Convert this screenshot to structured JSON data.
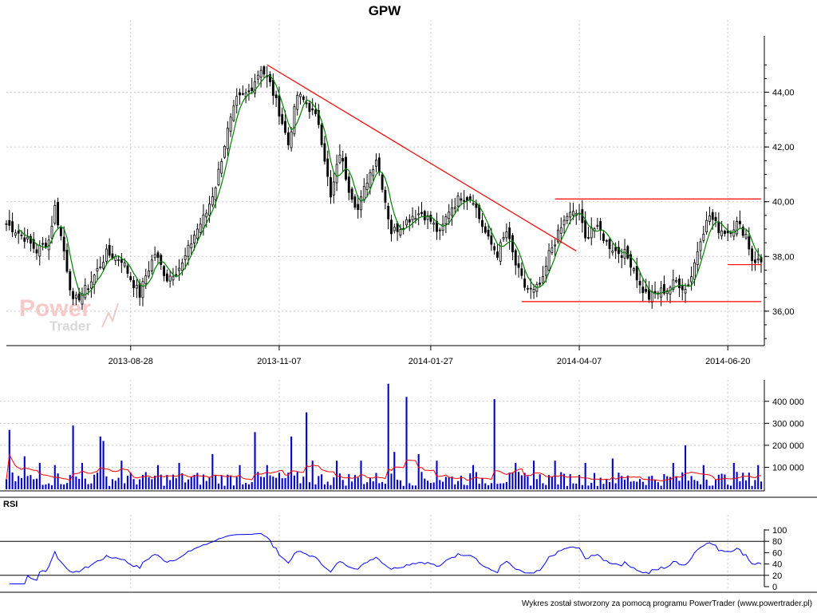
{
  "title": "GPW",
  "chart_data": [
    {
      "type": "candlestick",
      "ylim": [
        34.8,
        46.0
      ],
      "yticks": [
        "36,00",
        "38,00",
        "40,00",
        "42,00",
        "44,00"
      ],
      "ytick_values": [
        36,
        38,
        40,
        42,
        44
      ],
      "xticks": [
        "2013-08-28",
        "2013-11-07",
        "2014-01-27",
        "2014-04-07",
        "2014-06-20"
      ],
      "xtick_index": [
        41,
        90,
        140,
        189,
        238
      ],
      "n_days": 250,
      "grid": true,
      "close_anchors": [
        [
          0,
          39.2
        ],
        [
          6,
          38.7
        ],
        [
          10,
          38.2
        ],
        [
          14,
          38.6
        ],
        [
          16,
          39.8
        ],
        [
          19,
          38.2
        ],
        [
          22,
          36.3
        ],
        [
          27,
          36.9
        ],
        [
          31,
          37.7
        ],
        [
          33,
          38.1
        ],
        [
          38,
          37.9
        ],
        [
          41,
          37.2
        ],
        [
          44,
          36.6
        ],
        [
          46,
          37.3
        ],
        [
          49,
          38.1
        ],
        [
          53,
          37.2
        ],
        [
          58,
          37.7
        ],
        [
          62,
          38.8
        ],
        [
          66,
          39.6
        ],
        [
          69,
          40.6
        ],
        [
          73,
          42.6
        ],
        [
          76,
          43.7
        ],
        [
          80,
          44.0
        ],
        [
          84,
          44.9
        ],
        [
          87,
          44.3
        ],
        [
          90,
          43.3
        ],
        [
          93,
          42.1
        ],
        [
          96,
          43.9
        ],
        [
          99,
          43.6
        ],
        [
          103,
          42.9
        ],
        [
          105,
          41.6
        ],
        [
          107,
          40.1
        ],
        [
          110,
          41.8
        ],
        [
          113,
          40.5
        ],
        [
          116,
          39.7
        ],
        [
          119,
          40.8
        ],
        [
          122,
          41.6
        ],
        [
          124,
          40.6
        ],
        [
          127,
          38.9
        ],
        [
          130,
          39.1
        ],
        [
          134,
          39.5
        ],
        [
          137,
          39.6
        ],
        [
          140,
          39.3
        ],
        [
          143,
          38.8
        ],
        [
          146,
          39.7
        ],
        [
          150,
          40.2
        ],
        [
          154,
          40.1
        ],
        [
          156,
          39.4
        ],
        [
          159,
          38.6
        ],
        [
          162,
          38.1
        ],
        [
          165,
          38.9
        ],
        [
          168,
          37.7
        ],
        [
          171,
          36.9
        ],
        [
          174,
          36.7
        ],
        [
          177,
          37.1
        ],
        [
          179,
          38.1
        ],
        [
          182,
          38.8
        ],
        [
          185,
          39.5
        ],
        [
          189,
          39.6
        ],
        [
          191,
          38.6
        ],
        [
          193,
          39.1
        ],
        [
          196,
          38.9
        ],
        [
          198,
          38.5
        ],
        [
          201,
          38.2
        ],
        [
          204,
          38.1
        ],
        [
          207,
          37.6
        ],
        [
          209,
          36.9
        ],
        [
          212,
          36.5
        ],
        [
          215,
          36.7
        ],
        [
          218,
          36.8
        ],
        [
          221,
          37.1
        ],
        [
          224,
          36.8
        ],
        [
          226,
          37.3
        ],
        [
          229,
          38.7
        ],
        [
          232,
          39.5
        ],
        [
          235,
          39.0
        ],
        [
          238,
          38.9
        ],
        [
          241,
          39.2
        ],
        [
          244,
          38.8
        ],
        [
          246,
          37.9
        ],
        [
          249,
          37.8
        ]
      ],
      "lines": [
        {
          "color": "#ff0000",
          "points": [
            [
              86,
              45.0
            ],
            [
              188,
              38.2
            ]
          ]
        },
        {
          "color": "#ff0000",
          "points": [
            [
              181,
              40.1
            ],
            [
              249,
              40.1
            ]
          ]
        },
        {
          "color": "#ff0000",
          "points": [
            [
              170,
              36.35
            ],
            [
              249,
              36.35
            ]
          ]
        },
        {
          "color": "#ff0000",
          "points": [
            [
              238,
              37.7
            ],
            [
              249,
              37.7
            ]
          ]
        }
      ],
      "ma_color": "#008000",
      "candle_color": "#000000"
    },
    {
      "type": "bar",
      "ylim": [
        0,
        490000
      ],
      "yticks": [
        "100 000",
        "200 000",
        "300 000",
        "400 000"
      ],
      "ytick_values": [
        100000,
        200000,
        300000,
        400000
      ],
      "bar_color": "#0000cc",
      "avg_color": "#ff0000",
      "spikes": [
        [
          1,
          270000
        ],
        [
          6,
          150000
        ],
        [
          11,
          120000
        ],
        [
          16,
          110000
        ],
        [
          22,
          290000
        ],
        [
          25,
          120000
        ],
        [
          31,
          240000
        ],
        [
          32,
          220000
        ],
        [
          38,
          130000
        ],
        [
          50,
          110000
        ],
        [
          57,
          120000
        ],
        [
          68,
          160000
        ],
        [
          77,
          110000
        ],
        [
          82,
          260000
        ],
        [
          86,
          110000
        ],
        [
          94,
          240000
        ],
        [
          99,
          350000
        ],
        [
          101,
          130000
        ],
        [
          109,
          130000
        ],
        [
          117,
          130000
        ],
        [
          126,
          480000
        ],
        [
          128,
          170000
        ],
        [
          132,
          420000
        ],
        [
          136,
          160000
        ],
        [
          142,
          130000
        ],
        [
          154,
          110000
        ],
        [
          161,
          410000
        ],
        [
          168,
          120000
        ],
        [
          174,
          130000
        ],
        [
          181,
          130000
        ],
        [
          191,
          120000
        ],
        [
          200,
          140000
        ],
        [
          220,
          120000
        ],
        [
          224,
          200000
        ],
        [
          230,
          110000
        ],
        [
          240,
          120000
        ],
        [
          248,
          110000
        ]
      ]
    },
    {
      "type": "line",
      "series": [
        {
          "name": "RSI",
          "color": "#0000ff"
        }
      ],
      "ylim": [
        0,
        100
      ],
      "yticks": [
        "0",
        "20",
        "40",
        "60",
        "80",
        "100"
      ],
      "ytick_values": [
        0,
        20,
        40,
        60,
        80,
        100
      ],
      "bands": [
        20,
        80
      ],
      "label": "RSI"
    }
  ],
  "logo": {
    "line1": "Power",
    "line2": "Trader"
  },
  "credit": "Wykres został stworzony za pomocą programu PowerTrader (www.powertrader.pl)"
}
